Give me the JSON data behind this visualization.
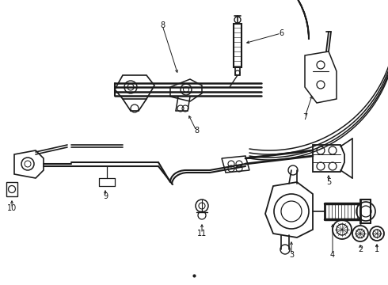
{
  "background_color": "#f5f5f5",
  "line_color": "#1a1a1a",
  "text_color": "#111111",
  "fig_width": 4.9,
  "fig_height": 3.6,
  "dpi": 100
}
